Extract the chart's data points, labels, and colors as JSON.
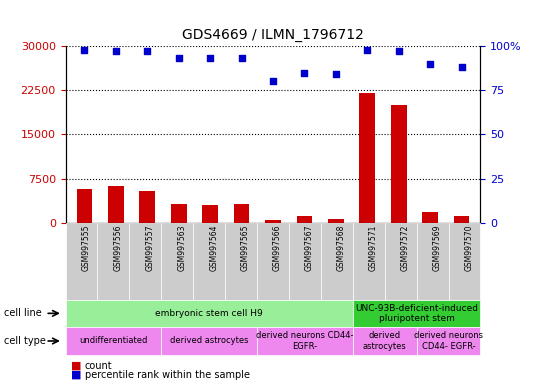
{
  "title": "GDS4669 / ILMN_1796712",
  "samples": [
    "GSM997555",
    "GSM997556",
    "GSM997557",
    "GSM997563",
    "GSM997564",
    "GSM997565",
    "GSM997566",
    "GSM997567",
    "GSM997568",
    "GSM997571",
    "GSM997572",
    "GSM997569",
    "GSM997570"
  ],
  "counts": [
    5800,
    6200,
    5400,
    3200,
    3000,
    3200,
    500,
    1200,
    600,
    22000,
    20000,
    1800,
    1200
  ],
  "percentiles": [
    98,
    97,
    97,
    93,
    93,
    93,
    80,
    85,
    84,
    98,
    97,
    90,
    88
  ],
  "ylim_left": [
    0,
    30000
  ],
  "ylim_right": [
    0,
    100
  ],
  "yticks_left": [
    0,
    7500,
    15000,
    22500,
    30000
  ],
  "yticks_right": [
    0,
    25,
    50,
    75,
    100
  ],
  "bar_color": "#cc0000",
  "dot_color": "#0000cc",
  "tick_label_color_left": "#cc0000",
  "tick_label_color_right": "#0000cc",
  "gray_box_color": "#cccccc",
  "cell_line_regions": [
    {
      "label": "embryonic stem cell H9",
      "start": 0,
      "end": 8,
      "color": "#99ee99"
    },
    {
      "label": "UNC-93B-deficient-induced\npluripotent stem",
      "start": 9,
      "end": 12,
      "color": "#33cc33"
    }
  ],
  "cell_type_regions": [
    {
      "label": "undifferentiated",
      "start": 0,
      "end": 2,
      "color": "#ee88ee"
    },
    {
      "label": "derived astrocytes",
      "start": 3,
      "end": 5,
      "color": "#ee88ee"
    },
    {
      "label": "derived neurons CD44-\nEGFR-",
      "start": 6,
      "end": 8,
      "color": "#ee88ee"
    },
    {
      "label": "derived\nastrocytes",
      "start": 9,
      "end": 10,
      "color": "#ee88ee"
    },
    {
      "label": "derived neurons\nCD44- EGFR-",
      "start": 11,
      "end": 12,
      "color": "#ee88ee"
    }
  ]
}
